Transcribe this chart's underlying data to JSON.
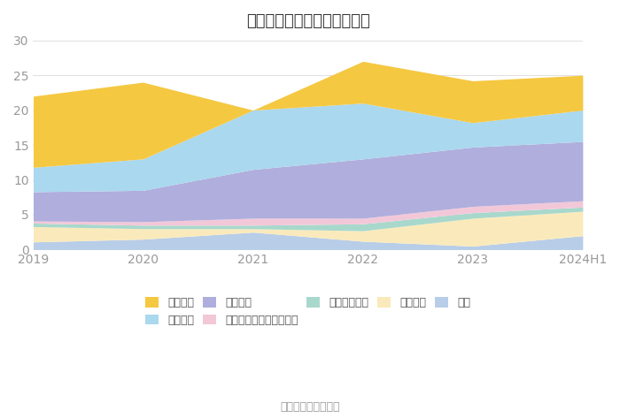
{
  "years": [
    "2019",
    "2020",
    "2021",
    "2022",
    "2023",
    "2024H1"
  ],
  "series": [
    {
      "name": "其它",
      "color": "#b8cde8",
      "values": [
        1.1,
        1.5,
        2.5,
        1.2,
        0.5,
        2.0
      ]
    },
    {
      "name": "长期借款",
      "color": "#faeabb",
      "values": [
        2.2,
        1.5,
        0.5,
        1.5,
        4.0,
        3.5
      ]
    },
    {
      "name": "其他流动负债",
      "color": "#a8d8cc",
      "values": [
        0.5,
        0.5,
        0.5,
        1.0,
        0.8,
        0.6
      ]
    },
    {
      "name": "一年内到期的非流动负债",
      "color": "#f2c8d8",
      "values": [
        0.3,
        0.5,
        1.0,
        0.8,
        0.9,
        0.9
      ]
    },
    {
      "name": "应付账款",
      "color": "#b0aedd",
      "values": [
        4.2,
        4.5,
        7.0,
        8.5,
        8.5,
        8.5
      ]
    },
    {
      "name": "应付票据",
      "color": "#aad8ee",
      "values": [
        3.5,
        4.5,
        8.5,
        8.0,
        3.5,
        4.5
      ]
    },
    {
      "name": "短期借款",
      "color": "#f5c842",
      "values": [
        10.2,
        11.0,
        0.0,
        6.0,
        6.0,
        5.0
      ]
    }
  ],
  "legend_order": [
    6,
    5,
    4,
    3,
    2,
    1,
    0
  ],
  "legend_names": [
    "短期借款",
    "应付票据",
    "应付账款",
    "一年内到期的非流动负债",
    "其他流动负债",
    "长期借款",
    "其它"
  ],
  "legend_colors": [
    "#f5c842",
    "#aad8ee",
    "#b0aedd",
    "#f2c8d8",
    "#a8d8cc",
    "#faeabb",
    "#b8cde8"
  ],
  "title": "历年主要负债堆积图（亿元）",
  "ylim": [
    0,
    30
  ],
  "yticks": [
    0,
    5,
    10,
    15,
    20,
    25,
    30
  ],
  "source": "数据来源：恒生聚源",
  "bg": "#ffffff",
  "grid_color": "#e0e0e0"
}
